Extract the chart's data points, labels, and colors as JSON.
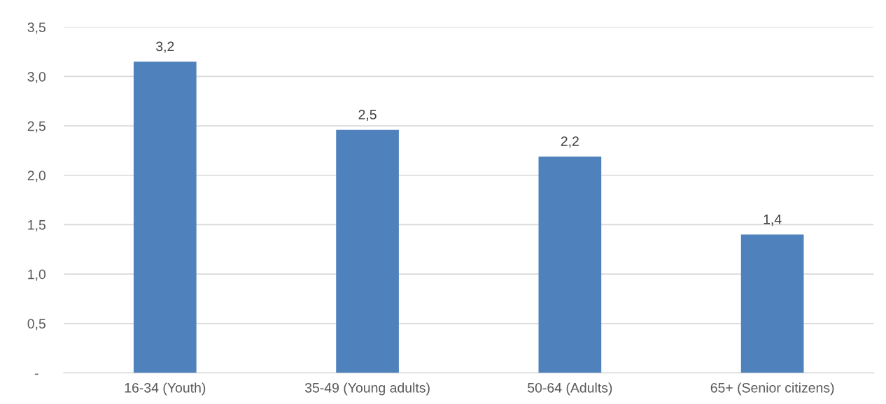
{
  "chart_data": {
    "type": "bar",
    "categories": [
      "16-34 (Youth)",
      "35-49 (Young adults)",
      "50-64 (Adults)",
      "65+ (Senior citizens)"
    ],
    "values": [
      3.15,
      2.46,
      2.19,
      1.4
    ],
    "value_labels": [
      "3,2",
      "2,5",
      "2,2",
      "1,4"
    ],
    "color": "#4f81bd",
    "ylim": [
      0,
      3.5
    ],
    "yticks": [
      {
        "value": 0,
        "label": "-"
      },
      {
        "value": 0.5,
        "label": "0,5"
      },
      {
        "value": 1.0,
        "label": "1,0"
      },
      {
        "value": 1.5,
        "label": "1,5"
      },
      {
        "value": 2.0,
        "label": "2,0"
      },
      {
        "value": 2.5,
        "label": "2,5"
      },
      {
        "value": 3.0,
        "label": "3,0"
      },
      {
        "value": 3.5,
        "label": "3,5"
      }
    ],
    "grid": "y"
  }
}
